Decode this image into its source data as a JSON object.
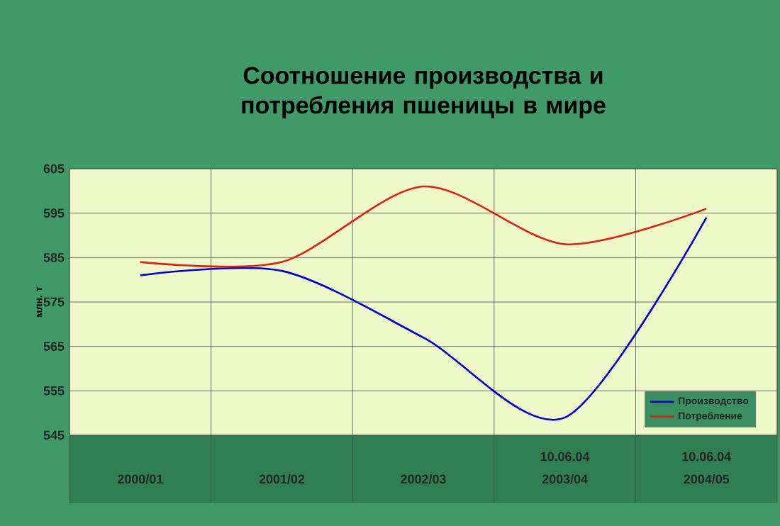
{
  "chart_data": {
    "type": "line",
    "title": "Соотношение производства и потребления пшеницы в мире",
    "ylabel": "млн. т",
    "categories": [
      "2000/01",
      "2001/02",
      "2002/03",
      "2003/04",
      "2004/05"
    ],
    "series": [
      {
        "name": "Производство",
        "color": "#0000cc",
        "values": [
          581,
          582,
          567,
          549,
          594
        ]
      },
      {
        "name": "Потребление",
        "color": "#dd2211",
        "values": [
          584,
          584,
          601,
          588,
          596
        ]
      }
    ],
    "ylim": [
      545,
      605
    ],
    "yticks": [
      545,
      555,
      565,
      575,
      585,
      595,
      605
    ],
    "grid": true,
    "legend": "bottom right",
    "annotations": [
      "10.06.04",
      "10.06.04"
    ]
  }
}
